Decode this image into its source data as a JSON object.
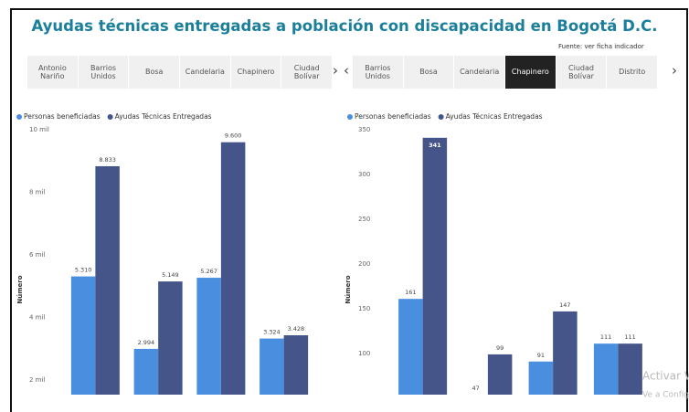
{
  "title": "Ayudas técnicas entregadas a población con discapacidad en Bogotá D.C.",
  "source": "Fuente: ver ficha indicador",
  "slicers": [
    {
      "items": [
        "Antonio Nariño",
        "Barrios Unidos",
        "Bosa",
        "Candelaria",
        "Chapinero",
        "Ciudad Bolívar"
      ]
    },
    {
      "items": [
        "Barrios Unidos",
        "Bosa",
        "Candelaria",
        "Chapinero",
        "Ciudad Bolívar",
        "Distrito"
      ],
      "selected": 3
    }
  ],
  "watermark": [
    "Activar W",
    "Ve a Config"
  ],
  "chart_data": [
    {
      "type": "bar",
      "ylabel": "Número",
      "categories": [
        null,
        null,
        null,
        null
      ],
      "series": [
        {
          "name": "Personas beneficiadas",
          "color": "#4a8fdf",
          "values": [
            5310,
            2994,
            5267,
            3324
          ],
          "value_labels": [
            "5.310",
            "2.994",
            "5.267",
            "3.324"
          ]
        },
        {
          "name": "Ayudas Técnicas Entregadas",
          "color": "#45558a",
          "values": [
            8833,
            5149,
            9600,
            3428
          ],
          "value_labels": [
            "8.833",
            "5.149",
            "9.600",
            "3.428"
          ]
        }
      ],
      "ylim": [
        1530,
        10000
      ],
      "yticks": [
        {
          "value": 2000,
          "label": "2 mil"
        },
        {
          "value": 4000,
          "label": "4 mil"
        },
        {
          "value": 6000,
          "label": "6 mil"
        },
        {
          "value": 8000,
          "label": "8 mil"
        },
        {
          "value": 10000,
          "label": "10 mil"
        }
      ]
    },
    {
      "type": "bar",
      "ylabel": "Número",
      "categories": [
        null,
        null,
        null,
        null
      ],
      "series": [
        {
          "name": "Personas beneficiadas",
          "color": "#4a8fdf",
          "values": [
            161,
            47,
            91,
            111
          ]
        },
        {
          "name": "Ayudas Técnicas Entregadas",
          "color": "#45558a",
          "values": [
            341,
            99,
            147,
            111
          ]
        }
      ],
      "ylim": [
        54,
        350
      ],
      "yticks": [
        100,
        150,
        200,
        250,
        300,
        350
      ]
    }
  ]
}
